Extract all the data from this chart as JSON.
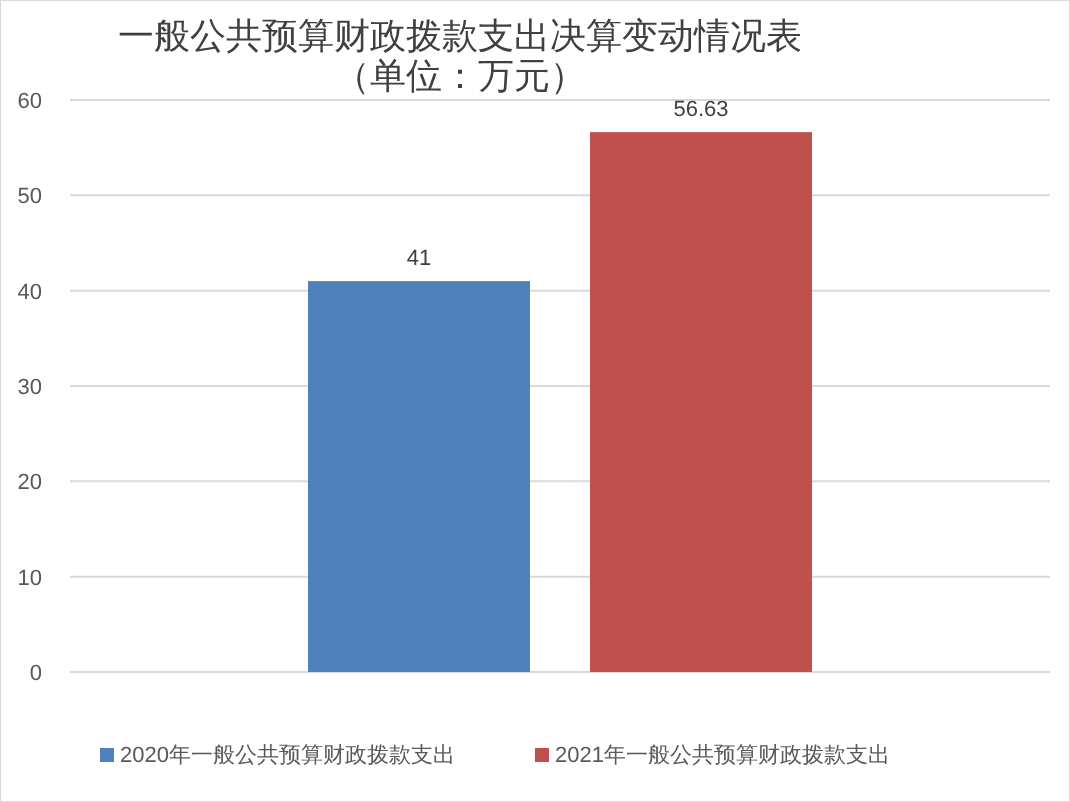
{
  "chart_data": {
    "type": "bar",
    "title": "一般公共预算财政拨款支出决算变动情况表",
    "subtitle": "（单位：万元）",
    "categories": [
      null
    ],
    "series": [
      {
        "name": "2020年一般公共预算财政拨款支出",
        "color": "#4f81bd",
        "values": [
          41
        ]
      },
      {
        "name": "2021年一般公共预算财政拨款支出",
        "color": "#c0504d",
        "values": [
          56.63
        ]
      }
    ],
    "ylim": [
      0,
      60
    ],
    "yticks": [
      0,
      10,
      20,
      30,
      40,
      50,
      60
    ],
    "grid": "y",
    "legend": "bottom",
    "data_labels": true
  }
}
